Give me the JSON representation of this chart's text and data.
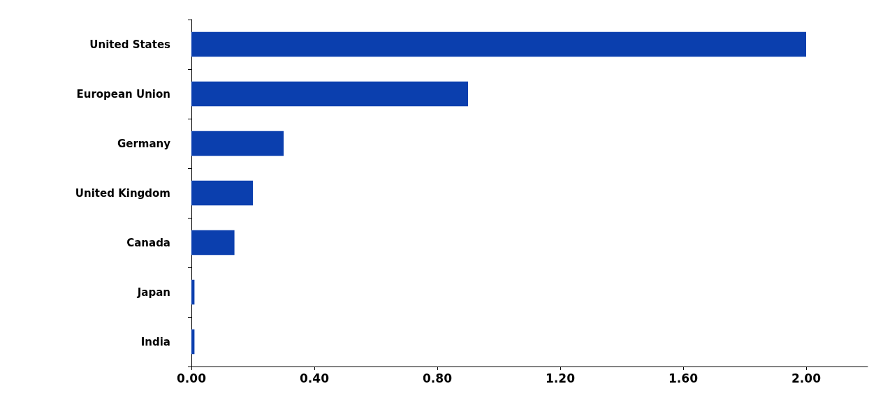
{
  "chart_data": {
    "type": "bar",
    "orientation": "horizontal",
    "categories": [
      "United States",
      "European Union",
      "Germany",
      "United Kingdom",
      "Canada",
      "Japan",
      "India"
    ],
    "values": [
      2.0,
      0.9,
      0.3,
      0.2,
      0.14,
      0.01,
      0.01
    ],
    "color": "#0b3fae",
    "xlim": [
      0,
      2.2
    ],
    "xticks": [
      {
        "value": 0,
        "label": "0.00"
      },
      {
        "value": 0.4,
        "label": "0.40"
      },
      {
        "value": 0.8,
        "label": "0.80"
      },
      {
        "value": 1.2,
        "label": "1.20"
      },
      {
        "value": 1.6,
        "label": "1.60"
      },
      {
        "value": 2.0,
        "label": "2.00"
      }
    ],
    "grid": false
  }
}
